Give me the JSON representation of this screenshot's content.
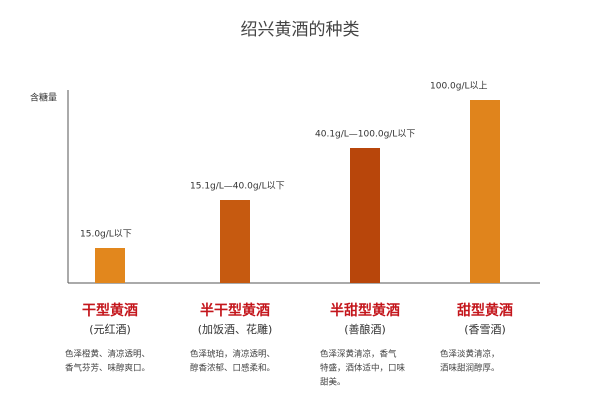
{
  "title": "绍兴黄酒的种类",
  "y_label": "含糖量",
  "items": [
    {
      "level": "15.0g/L以下",
      "name": "干型黄酒",
      "subname": "(元红酒)",
      "description": [
        "色泽橙黄、清凉透明、",
        "香气芬芳、味醇爽口。"
      ]
    },
    {
      "level": "15.1g/L—40.0g/L以下",
      "name": "半干型黄酒",
      "subname": "(加饭酒、花雕)",
      "description": [
        "色泽琥珀，清凉透明、",
        "醇香浓郁、口感柔和。"
      ]
    },
    {
      "level": "40.1g/L—100.0g/L以下",
      "name": "半甜型黄酒",
      "subname": "(善酿酒)",
      "description": [
        "色泽深黄清凉，香气",
        "特盛，酒体适中，口味",
        "甜美。"
      ]
    },
    {
      "level": "100.0g/L以上",
      "name": "甜型黄酒",
      "subname": "(香雪酒)",
      "description": [
        "色泽淡黄清凉，",
        "酒味甜润醇厚。"
      ]
    }
  ]
}
